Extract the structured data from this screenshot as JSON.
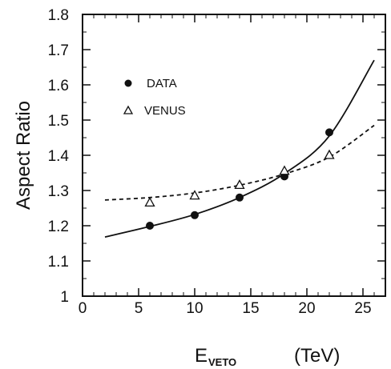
{
  "chart_data": {
    "type": "scatter",
    "title": "",
    "ylabel": "Aspect Ratio",
    "xlabel_main": "E",
    "xlabel_sub": "VETO",
    "xlabel_unit": "(TeV)",
    "xlim": [
      0,
      27
    ],
    "ylim": [
      1.0,
      1.8
    ],
    "xticks": [
      0,
      5,
      10,
      15,
      20,
      25
    ],
    "yticks": [
      1,
      1.1,
      1.2,
      1.3,
      1.4,
      1.5,
      1.6,
      1.7,
      1.8
    ],
    "grid": false,
    "legend_position": "upper-left",
    "series": [
      {
        "name": "DATA",
        "marker": "filled-circle",
        "x": [
          6,
          10,
          14,
          18,
          22
        ],
        "y": [
          1.2,
          1.23,
          1.28,
          1.34,
          1.465
        ]
      },
      {
        "name": "VENUS",
        "marker": "open-triangle",
        "x": [
          6,
          10,
          14,
          18,
          22
        ],
        "y": [
          1.265,
          1.285,
          1.315,
          1.355,
          1.4
        ]
      }
    ],
    "fits": [
      {
        "series": "DATA",
        "style": "solid",
        "x": [
          2,
          6,
          10,
          14,
          18,
          22,
          26
        ],
        "y": [
          1.168,
          1.198,
          1.232,
          1.28,
          1.348,
          1.455,
          1.67
        ]
      },
      {
        "series": "VENUS",
        "style": "dashed",
        "x": [
          2,
          6,
          10,
          14,
          18,
          22,
          26
        ],
        "y": [
          1.273,
          1.28,
          1.293,
          1.315,
          1.347,
          1.395,
          1.485
        ]
      }
    ]
  }
}
